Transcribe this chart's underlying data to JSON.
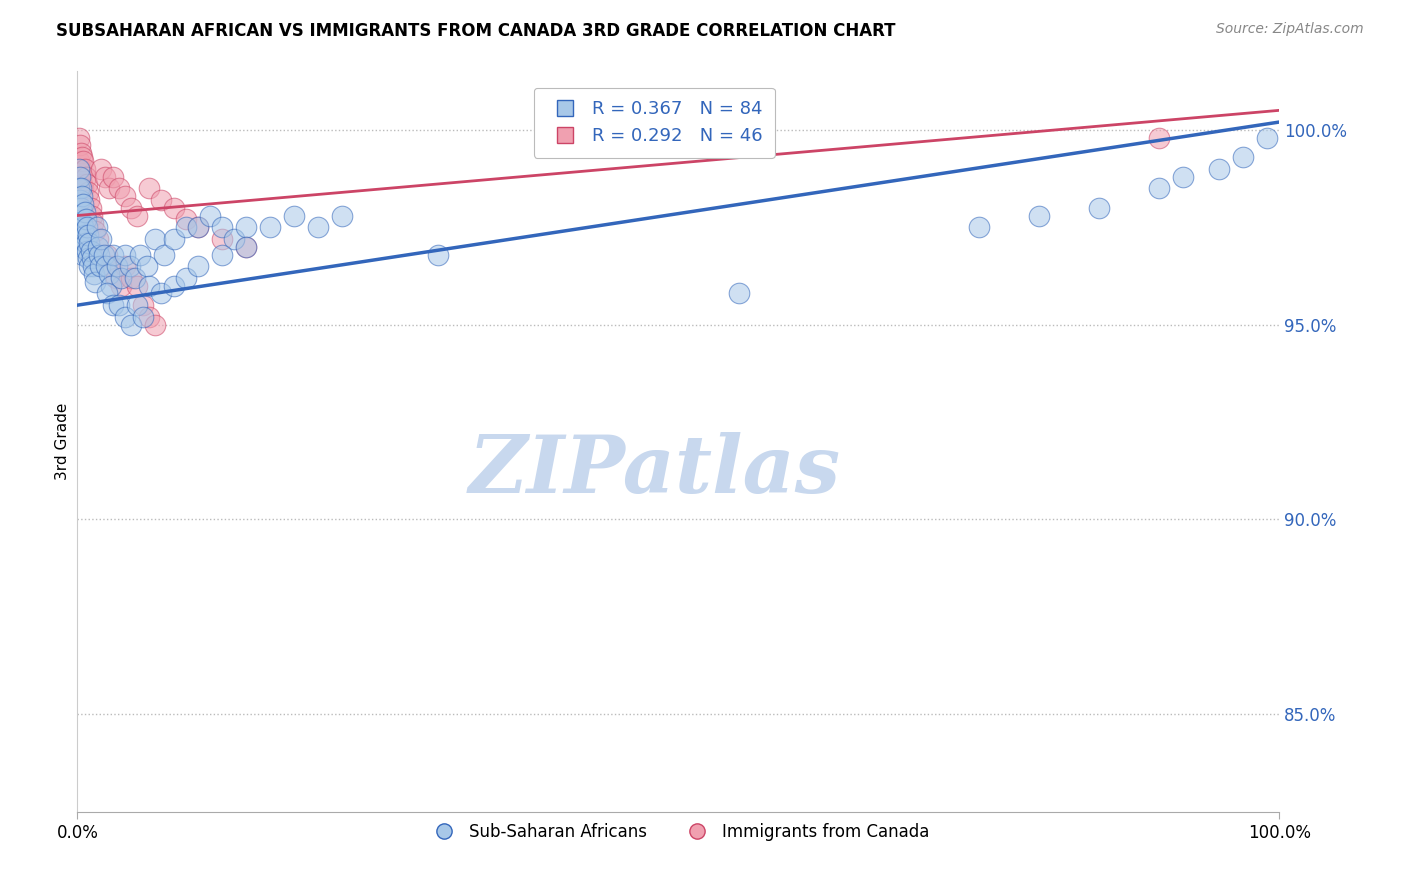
{
  "title": "SUBSAHARAN AFRICAN VS IMMIGRANTS FROM CANADA 3RD GRADE CORRELATION CHART",
  "source_text": "Source: ZipAtlas.com",
  "ylabel": "3rd Grade",
  "xlim": [
    0.0,
    1.0
  ],
  "ylim": [
    0.825,
    1.015
  ],
  "yticks": [
    0.85,
    0.9,
    0.95,
    1.0
  ],
  "ytick_labels": [
    "85.0%",
    "90.0%",
    "95.0%",
    "100.0%"
  ],
  "xticks": [
    0.0,
    1.0
  ],
  "xtick_labels": [
    "0.0%",
    "100.0%"
  ],
  "legend1_label": "R = 0.367   N = 84",
  "legend2_label": "R = 0.292   N = 46",
  "series1_color": "#A8C8E8",
  "series2_color": "#F0A0B0",
  "line1_color": "#3366BB",
  "line2_color": "#CC4466",
  "watermark": "ZIPatlas",
  "watermark_color": "#C8D8EE",
  "background_color": "#FFFFFF",
  "series1_label": "Sub-Saharan Africans",
  "series2_label": "Immigrants from Canada",
  "blue_x": [
    0.001,
    0.001,
    0.001,
    0.002,
    0.002,
    0.002,
    0.003,
    0.003,
    0.003,
    0.004,
    0.004,
    0.004,
    0.005,
    0.005,
    0.005,
    0.006,
    0.006,
    0.007,
    0.007,
    0.008,
    0.008,
    0.009,
    0.009,
    0.01,
    0.01,
    0.011,
    0.012,
    0.013,
    0.014,
    0.015,
    0.016,
    0.017,
    0.018,
    0.019,
    0.02,
    0.022,
    0.024,
    0.026,
    0.028,
    0.03,
    0.033,
    0.036,
    0.04,
    0.044,
    0.048,
    0.052,
    0.058,
    0.065,
    0.072,
    0.08,
    0.09,
    0.1,
    0.11,
    0.12,
    0.13,
    0.14,
    0.16,
    0.18,
    0.2,
    0.22,
    0.025,
    0.03,
    0.035,
    0.04,
    0.045,
    0.05,
    0.055,
    0.06,
    0.07,
    0.08,
    0.09,
    0.1,
    0.12,
    0.14,
    0.3,
    0.55,
    0.75,
    0.8,
    0.85,
    0.9,
    0.92,
    0.95,
    0.97,
    0.99
  ],
  "blue_y": [
    0.99,
    0.985,
    0.978,
    0.988,
    0.982,
    0.975,
    0.985,
    0.98,
    0.972,
    0.983,
    0.976,
    0.97,
    0.981,
    0.975,
    0.968,
    0.979,
    0.973,
    0.977,
    0.971,
    0.975,
    0.969,
    0.973,
    0.967,
    0.971,
    0.965,
    0.969,
    0.967,
    0.965,
    0.963,
    0.961,
    0.975,
    0.97,
    0.968,
    0.965,
    0.972,
    0.968,
    0.965,
    0.963,
    0.96,
    0.968,
    0.965,
    0.962,
    0.968,
    0.965,
    0.962,
    0.968,
    0.965,
    0.972,
    0.968,
    0.972,
    0.975,
    0.975,
    0.978,
    0.975,
    0.972,
    0.975,
    0.975,
    0.978,
    0.975,
    0.978,
    0.958,
    0.955,
    0.955,
    0.952,
    0.95,
    0.955,
    0.952,
    0.96,
    0.958,
    0.96,
    0.962,
    0.965,
    0.968,
    0.97,
    0.968,
    0.958,
    0.975,
    0.978,
    0.98,
    0.985,
    0.988,
    0.99,
    0.993,
    0.998
  ],
  "pink_x": [
    0.001,
    0.001,
    0.002,
    0.002,
    0.003,
    0.003,
    0.004,
    0.004,
    0.005,
    0.005,
    0.006,
    0.007,
    0.008,
    0.009,
    0.01,
    0.011,
    0.012,
    0.013,
    0.015,
    0.017,
    0.02,
    0.023,
    0.026,
    0.03,
    0.035,
    0.04,
    0.045,
    0.05,
    0.06,
    0.07,
    0.08,
    0.09,
    0.1,
    0.12,
    0.14,
    0.025,
    0.028,
    0.032,
    0.036,
    0.04,
    0.045,
    0.05,
    0.055,
    0.06,
    0.065,
    0.9
  ],
  "pink_y": [
    0.998,
    0.992,
    0.996,
    0.99,
    0.994,
    0.988,
    0.993,
    0.986,
    0.992,
    0.985,
    0.99,
    0.988,
    0.986,
    0.984,
    0.982,
    0.98,
    0.978,
    0.976,
    0.974,
    0.972,
    0.99,
    0.988,
    0.985,
    0.988,
    0.985,
    0.983,
    0.98,
    0.978,
    0.985,
    0.982,
    0.98,
    0.977,
    0.975,
    0.972,
    0.97,
    0.968,
    0.965,
    0.962,
    0.96,
    0.965,
    0.962,
    0.96,
    0.955,
    0.952,
    0.95,
    0.998
  ],
  "blue_trend_x": [
    0.0,
    1.0
  ],
  "blue_trend_y": [
    0.955,
    1.002
  ],
  "pink_trend_x": [
    0.0,
    1.0
  ],
  "pink_trend_y": [
    0.978,
    1.005
  ]
}
